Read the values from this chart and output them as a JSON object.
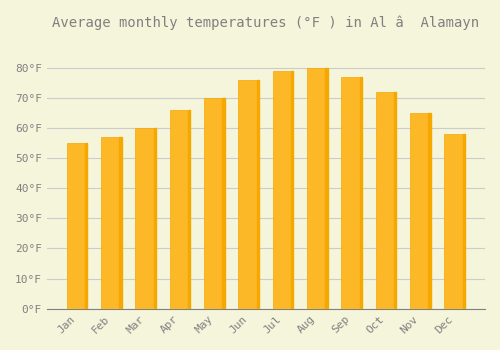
{
  "title": "Average monthly temperatures (°F ) in Al â  Alamayn",
  "months": [
    "Jan",
    "Feb",
    "Mar",
    "Apr",
    "May",
    "Jun",
    "Jul",
    "Aug",
    "Sep",
    "Oct",
    "Nov",
    "Dec"
  ],
  "values": [
    55,
    57,
    60,
    66,
    70,
    76,
    79,
    80,
    77,
    72,
    65,
    58
  ],
  "bar_color_main": "#FDB827",
  "bar_color_right": "#F5A800",
  "background_color": "#F5F5DC",
  "grid_color": "#CCCCCC",
  "text_color": "#808080",
  "ylim": [
    0,
    90
  ],
  "yticks": [
    0,
    10,
    20,
    30,
    40,
    50,
    60,
    70,
    80
  ],
  "ytick_labels": [
    "0°F",
    "10°F",
    "20°F",
    "30°F",
    "40°F",
    "50°F",
    "60°F",
    "70°F",
    "80°F"
  ],
  "title_fontsize": 10,
  "tick_fontsize": 8,
  "font_family": "monospace"
}
